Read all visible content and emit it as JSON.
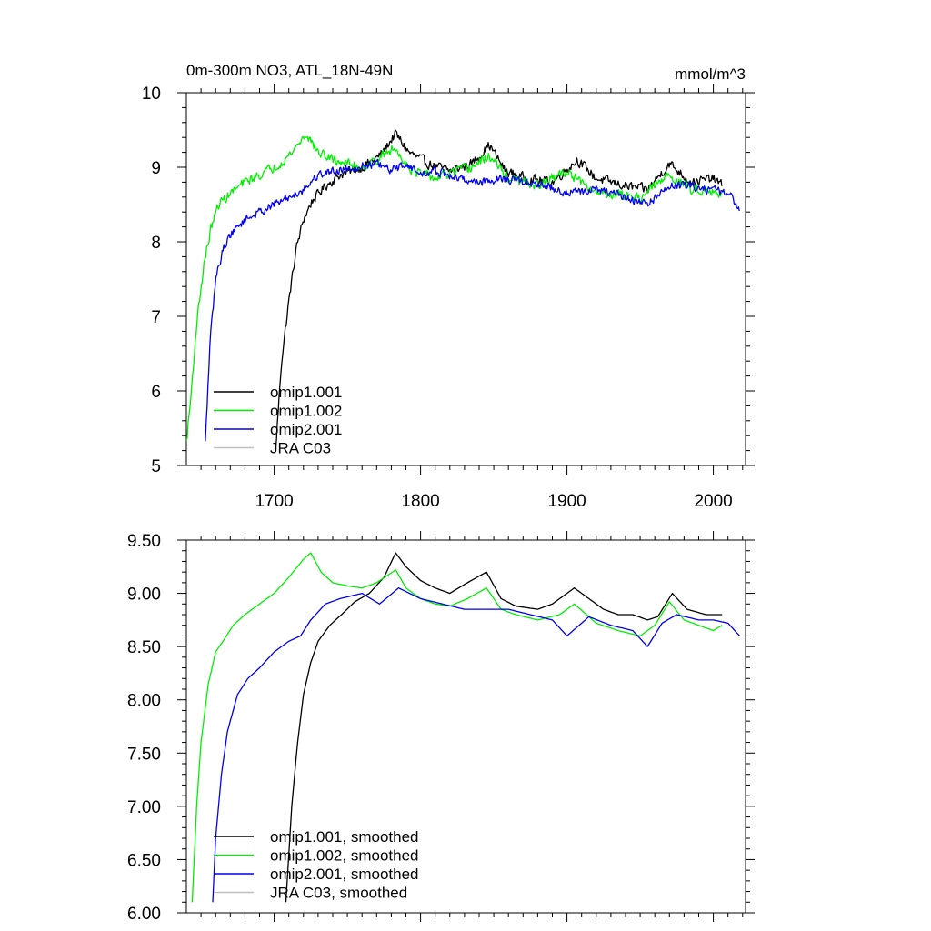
{
  "chart_data": [
    {
      "type": "line",
      "title": "0m-300m NO3, ATL_18N-49N",
      "units": "mmol/m^3",
      "xlabel": "",
      "ylabel": "",
      "xlim": [
        1640,
        2022
      ],
      "ylim": [
        5,
        10
      ],
      "xticks": [
        1700,
        1800,
        1900,
        2000
      ],
      "xtick_labels": [
        "1700",
        "1800",
        "1900",
        "2000"
      ],
      "yticks": [
        5,
        6,
        7,
        8,
        9,
        10
      ],
      "ytick_labels": [
        "5",
        "6",
        "7",
        "8",
        "9",
        "10"
      ],
      "legend_position": "bottom-left",
      "series": [
        {
          "name": "omip1.001",
          "color": "#000000",
          "noise": 0.09,
          "x": [
            1701,
            1705,
            1710,
            1715,
            1720,
            1726,
            1735,
            1745,
            1760,
            1772,
            1783,
            1792,
            1805,
            1820,
            1835,
            1847,
            1858,
            1872,
            1890,
            1907,
            1920,
            1940,
            1955,
            1970,
            1985,
            2000,
            2006
          ],
          "y": [
            5.2,
            6.4,
            7.2,
            7.9,
            8.3,
            8.55,
            8.75,
            8.9,
            9.0,
            9.15,
            9.45,
            9.2,
            9.05,
            8.95,
            9.05,
            9.3,
            8.95,
            8.85,
            8.8,
            9.1,
            8.85,
            8.75,
            8.7,
            9.05,
            8.8,
            8.85,
            8.75
          ]
        },
        {
          "name": "omip1.002",
          "color": "#00ee00",
          "noise": 0.09,
          "x": [
            1640,
            1643,
            1647,
            1652,
            1657,
            1662,
            1670,
            1680,
            1690,
            1700,
            1710,
            1722,
            1730,
            1740,
            1750,
            1760,
            1770,
            1782,
            1795,
            1810,
            1825,
            1835,
            1847,
            1860,
            1880,
            1900,
            1915,
            1930,
            1950,
            1970,
            1985,
            2000,
            2006
          ],
          "y": [
            5.3,
            5.9,
            6.9,
            7.7,
            8.2,
            8.5,
            8.65,
            8.8,
            8.9,
            9.0,
            9.15,
            9.45,
            9.2,
            9.1,
            9.05,
            9.0,
            9.1,
            9.25,
            8.95,
            8.85,
            8.95,
            9.0,
            9.15,
            8.85,
            8.75,
            8.95,
            8.7,
            8.65,
            8.6,
            8.9,
            8.7,
            8.7,
            8.6
          ]
        },
        {
          "name": "omip2.001",
          "color": "#0000ee",
          "noise": 0.08,
          "x": [
            1653,
            1656,
            1660,
            1665,
            1670,
            1680,
            1690,
            1700,
            1710,
            1720,
            1730,
            1740,
            1755,
            1770,
            1780,
            1790,
            1800,
            1810,
            1825,
            1840,
            1855,
            1870,
            1885,
            1900,
            1920,
            1940,
            1955,
            1970,
            1985,
            2000,
            2010,
            2018
          ],
          "y": [
            5.3,
            6.6,
            7.5,
            7.9,
            8.1,
            8.3,
            8.4,
            8.5,
            8.6,
            8.7,
            8.9,
            8.95,
            9.0,
            9.05,
            8.95,
            9.05,
            8.9,
            8.95,
            8.85,
            8.8,
            8.85,
            8.8,
            8.75,
            8.65,
            8.7,
            8.6,
            8.5,
            8.75,
            8.75,
            8.7,
            8.65,
            8.45
          ]
        },
        {
          "name": "JRA C03",
          "color": "#c0c0c0",
          "noise": 0,
          "x": [],
          "y": []
        }
      ]
    },
    {
      "type": "line",
      "title": "",
      "xlabel": "",
      "ylabel": "",
      "xlim": [
        1640,
        2022
      ],
      "ylim": [
        6.0,
        9.5
      ],
      "xticks": [
        1700,
        1800,
        1900,
        2000
      ],
      "yticks": [
        6.0,
        6.5,
        7.0,
        7.5,
        8.0,
        8.5,
        9.0,
        9.5
      ],
      "ytick_labels": [
        "6.00",
        "6.50",
        "7.00",
        "7.50",
        "8.00",
        "8.50",
        "9.00",
        "9.50"
      ],
      "legend_position": "bottom-left",
      "series": [
        {
          "name": "omip1.001, smoothed",
          "color": "#000000",
          "noise": 0,
          "x": [
            1708,
            1712,
            1716,
            1720,
            1725,
            1730,
            1738,
            1746,
            1755,
            1765,
            1775,
            1783,
            1790,
            1800,
            1810,
            1820,
            1832,
            1845,
            1855,
            1865,
            1880,
            1890,
            1905,
            1915,
            1925,
            1935,
            1945,
            1955,
            1962,
            1972,
            1982,
            1995,
            2006
          ],
          "y": [
            6.1,
            7.0,
            7.6,
            8.05,
            8.35,
            8.55,
            8.7,
            8.8,
            8.92,
            9.0,
            9.15,
            9.38,
            9.25,
            9.12,
            9.05,
            9.0,
            9.1,
            9.2,
            8.95,
            8.88,
            8.85,
            8.9,
            9.05,
            8.95,
            8.85,
            8.8,
            8.8,
            8.75,
            8.78,
            9.0,
            8.85,
            8.8,
            8.8
          ]
        },
        {
          "name": "omip1.002, smoothed",
          "color": "#00ee00",
          "noise": 0,
          "x": [
            1644,
            1647,
            1650,
            1655,
            1660,
            1665,
            1672,
            1680,
            1690,
            1700,
            1710,
            1720,
            1725,
            1732,
            1740,
            1750,
            1760,
            1770,
            1783,
            1790,
            1800,
            1810,
            1820,
            1832,
            1845,
            1855,
            1865,
            1880,
            1895,
            1905,
            1920,
            1935,
            1950,
            1960,
            1970,
            1980,
            1990,
            2000,
            2006
          ],
          "y": [
            6.1,
            7.0,
            7.6,
            8.15,
            8.45,
            8.55,
            8.7,
            8.8,
            8.9,
            9.0,
            9.15,
            9.32,
            9.38,
            9.2,
            9.1,
            9.07,
            9.05,
            9.1,
            9.22,
            9.05,
            8.95,
            8.9,
            8.88,
            8.95,
            9.05,
            8.85,
            8.8,
            8.75,
            8.8,
            8.9,
            8.72,
            8.65,
            8.6,
            8.7,
            8.92,
            8.75,
            8.7,
            8.65,
            8.7
          ]
        },
        {
          "name": "omip2.001, smoothed",
          "color": "#0000ee",
          "noise": 0,
          "x": [
            1658,
            1660,
            1664,
            1668,
            1675,
            1682,
            1690,
            1700,
            1710,
            1718,
            1725,
            1735,
            1745,
            1760,
            1772,
            1785,
            1800,
            1815,
            1830,
            1845,
            1860,
            1875,
            1890,
            1900,
            1915,
            1930,
            1945,
            1955,
            1965,
            1975,
            1990,
            2000,
            2010,
            2018
          ],
          "y": [
            6.1,
            6.7,
            7.3,
            7.7,
            8.05,
            8.2,
            8.3,
            8.45,
            8.55,
            8.6,
            8.75,
            8.9,
            8.95,
            9.0,
            8.9,
            9.05,
            8.95,
            8.9,
            8.85,
            8.85,
            8.85,
            8.8,
            8.75,
            8.6,
            8.78,
            8.7,
            8.65,
            8.5,
            8.72,
            8.8,
            8.75,
            8.75,
            8.72,
            8.6
          ]
        },
        {
          "name": "JRA C03, smoothed",
          "color": "#c0c0c0",
          "noise": 0,
          "x": [],
          "y": []
        }
      ]
    }
  ]
}
